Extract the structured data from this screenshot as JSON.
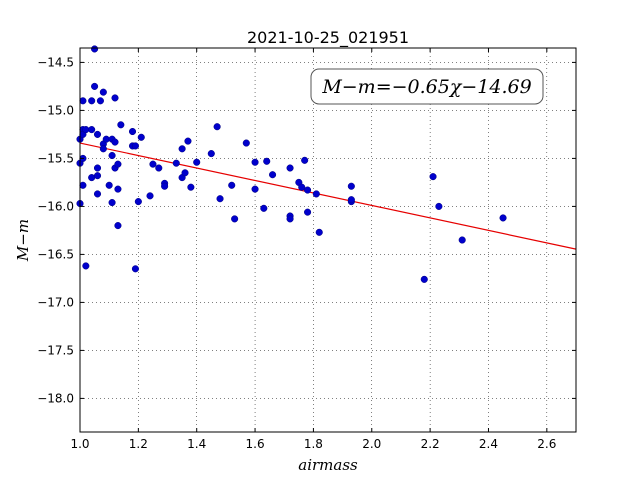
{
  "chart_data": {
    "type": "scatter",
    "title": "2021-10-25_021951",
    "xlabel": "airmass",
    "ylabel": "M−m",
    "xlim": [
      1.0,
      2.7
    ],
    "ylim": [
      -18.35,
      -14.35
    ],
    "y_inverted": true,
    "grid": true,
    "x_ticks": [
      1.0,
      1.2,
      1.4,
      1.6,
      1.8,
      2.0,
      2.2,
      2.4,
      2.6
    ],
    "x_tick_labels": [
      "1.0",
      "1.2",
      "1.4",
      "1.6",
      "1.8",
      "2.0",
      "2.2",
      "2.4",
      "2.6"
    ],
    "y_ticks": [
      -14.5,
      -15.0,
      -15.5,
      -16.0,
      -16.5,
      -17.0,
      -17.5,
      -18.0
    ],
    "y_tick_labels": [
      "−14.5",
      "−15.0",
      "−15.5",
      "−16.0",
      "−16.5",
      "−17.0",
      "−17.5",
      "−18.0"
    ],
    "annotation": "M−m=−0.65χ−14.69",
    "fit": {
      "slope": -0.65,
      "intercept": -14.69,
      "color": "#e60000"
    },
    "point_color": "#0000cc",
    "points": [
      [
        1.0,
        -15.3
      ],
      [
        1.0,
        -15.55
      ],
      [
        1.0,
        -15.97
      ],
      [
        1.01,
        -14.9
      ],
      [
        1.01,
        -15.2
      ],
      [
        1.01,
        -15.25
      ],
      [
        1.01,
        -15.5
      ],
      [
        1.01,
        -15.78
      ],
      [
        1.02,
        -15.2
      ],
      [
        1.02,
        -16.62
      ],
      [
        1.04,
        -15.2
      ],
      [
        1.04,
        -14.9
      ],
      [
        1.04,
        -15.7
      ],
      [
        1.05,
        -14.36
      ],
      [
        1.05,
        -14.75
      ],
      [
        1.06,
        -15.25
      ],
      [
        1.06,
        -15.6
      ],
      [
        1.06,
        -15.68
      ],
      [
        1.06,
        -15.87
      ],
      [
        1.07,
        -14.9
      ],
      [
        1.08,
        -14.81
      ],
      [
        1.08,
        -15.35
      ],
      [
        1.08,
        -15.4
      ],
      [
        1.09,
        -15.3
      ],
      [
        1.1,
        -15.78
      ],
      [
        1.11,
        -15.3
      ],
      [
        1.11,
        -15.47
      ],
      [
        1.11,
        -15.96
      ],
      [
        1.12,
        -14.87
      ],
      [
        1.12,
        -15.33
      ],
      [
        1.12,
        -15.6
      ],
      [
        1.13,
        -16.2
      ],
      [
        1.13,
        -15.56
      ],
      [
        1.13,
        -15.82
      ],
      [
        1.14,
        -15.15
      ],
      [
        1.18,
        -15.22
      ],
      [
        1.18,
        -15.37
      ],
      [
        1.19,
        -15.37
      ],
      [
        1.19,
        -16.65
      ],
      [
        1.2,
        -15.95
      ],
      [
        1.21,
        -15.28
      ],
      [
        1.24,
        -15.89
      ],
      [
        1.25,
        -15.56
      ],
      [
        1.27,
        -15.6
      ],
      [
        1.29,
        -15.76
      ],
      [
        1.29,
        -15.79
      ],
      [
        1.33,
        -15.55
      ],
      [
        1.35,
        -15.7
      ],
      [
        1.35,
        -15.4
      ],
      [
        1.36,
        -15.65
      ],
      [
        1.37,
        -15.32
      ],
      [
        1.38,
        -15.8
      ],
      [
        1.4,
        -15.54
      ],
      [
        1.45,
        -15.45
      ],
      [
        1.47,
        -15.17
      ],
      [
        1.48,
        -15.92
      ],
      [
        1.52,
        -15.78
      ],
      [
        1.53,
        -16.13
      ],
      [
        1.57,
        -15.34
      ],
      [
        1.6,
        -15.82
      ],
      [
        1.6,
        -15.54
      ],
      [
        1.63,
        -16.02
      ],
      [
        1.64,
        -15.53
      ],
      [
        1.66,
        -15.67
      ],
      [
        1.72,
        -15.6
      ],
      [
        1.72,
        -16.1
      ],
      [
        1.72,
        -16.13
      ],
      [
        1.75,
        -15.75
      ],
      [
        1.76,
        -15.8
      ],
      [
        1.77,
        -15.52
      ],
      [
        1.78,
        -15.83
      ],
      [
        1.78,
        -16.06
      ],
      [
        1.81,
        -15.87
      ],
      [
        1.82,
        -16.27
      ],
      [
        1.93,
        -15.95
      ],
      [
        1.93,
        -15.93
      ],
      [
        1.93,
        -15.79
      ],
      [
        2.18,
        -16.76
      ],
      [
        2.21,
        -15.69
      ],
      [
        2.23,
        -16.0
      ],
      [
        2.31,
        -16.35
      ],
      [
        2.45,
        -16.12
      ]
    ]
  }
}
